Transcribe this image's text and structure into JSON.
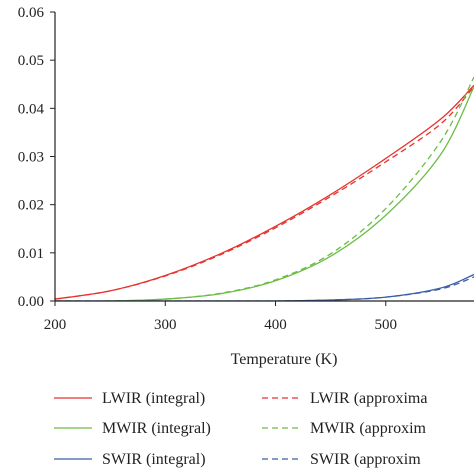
{
  "chart_data": {
    "type": "line",
    "xlabel": "Temperature (K)",
    "ylabel": "",
    "xlim": [
      200,
      580
    ],
    "ylim": [
      0,
      0.06
    ],
    "x_ticks": [
      200,
      300,
      400,
      500
    ],
    "x_tick_labels": [
      "200",
      "300",
      "400",
      "500"
    ],
    "y_ticks": [
      0,
      0.01,
      0.02,
      0.03,
      0.04,
      0.05,
      0.06
    ],
    "y_tick_labels": [
      "0.00",
      "0.01",
      "0.02",
      "0.03",
      "0.04",
      "0.05",
      "0.06"
    ],
    "grid": false,
    "legend_position": "bottom",
    "x": [
      200,
      250,
      300,
      350,
      400,
      450,
      500,
      550,
      580
    ],
    "series": [
      {
        "name": "LWIR (integral)",
        "color": "#e8322e",
        "dash": "solid",
        "values": [
          0.0004,
          0.0021,
          0.0053,
          0.0098,
          0.0155,
          0.0221,
          0.0296,
          0.0378,
          0.0448
        ]
      },
      {
        "name": "MWIR (integral)",
        "color": "#6cbd45",
        "dash": "solid",
        "values": [
          0.0,
          0.0,
          0.0004,
          0.0015,
          0.0042,
          0.0093,
          0.0178,
          0.0305,
          0.0445
        ]
      },
      {
        "name": "SWIR (integral)",
        "color": "#3a5ea8",
        "dash": "solid",
        "values": [
          0.0,
          0.0,
          0.0,
          0.0,
          0.0,
          0.0002,
          0.0008,
          0.0027,
          0.0055
        ]
      },
      {
        "name": "LWIR (approxima",
        "color": "#e8322e",
        "dash": "dashed",
        "values": [
          0.0004,
          0.0021,
          0.0052,
          0.0096,
          0.0152,
          0.0217,
          0.0289,
          0.0368,
          0.0445
        ]
      },
      {
        "name": "MWIR (approxim",
        "color": "#6cbd45",
        "dash": "dashed",
        "values": [
          0.0,
          0.0,
          0.0004,
          0.0016,
          0.0044,
          0.0098,
          0.0192,
          0.0332,
          0.0465
        ]
      },
      {
        "name": "SWIR (approxim",
        "color": "#3a5ea8",
        "dash": "dashed",
        "values": [
          0.0,
          0.0,
          0.0,
          0.0,
          0.0,
          0.0002,
          0.0008,
          0.0025,
          0.005
        ]
      }
    ]
  }
}
